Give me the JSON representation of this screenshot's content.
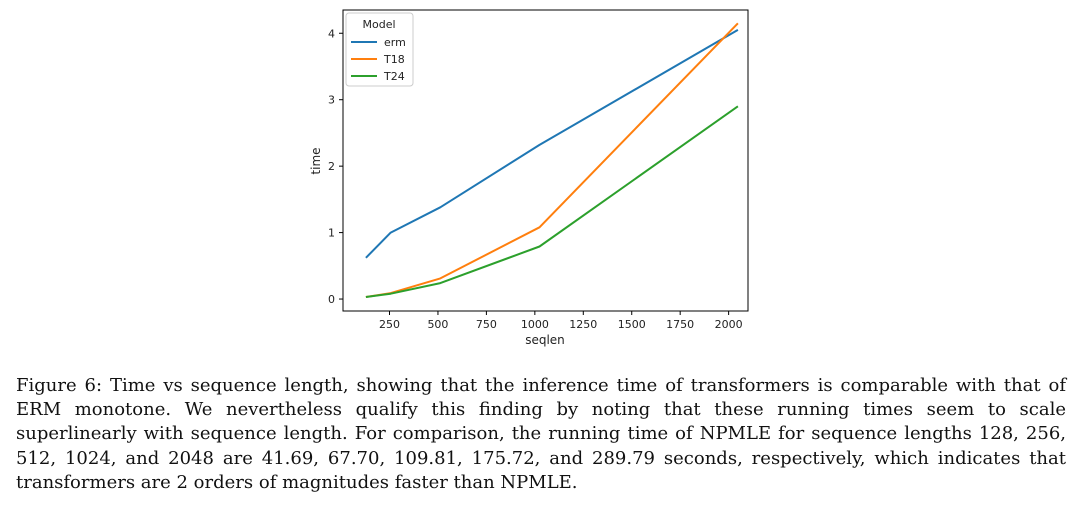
{
  "chart_data": {
    "type": "line",
    "xlabel": "seqlen",
    "ylabel": "time",
    "xlim": [
      10,
      2100
    ],
    "ylim": [
      -0.18,
      4.35
    ],
    "xticks": [
      250,
      500,
      750,
      1000,
      1250,
      1500,
      1750,
      2000
    ],
    "yticks": [
      0,
      1,
      2,
      3,
      4
    ],
    "grid": false,
    "legend": {
      "title": "Model",
      "placement": "top-left"
    },
    "x": [
      128,
      256,
      512,
      1024,
      2048
    ],
    "series": [
      {
        "name": "erm",
        "color": "#1f77b4",
        "values": [
          0.62,
          1.0,
          1.38,
          2.32,
          4.05
        ]
      },
      {
        "name": "T18",
        "color": "#ff7f0e",
        "values": [
          0.03,
          0.09,
          0.31,
          1.08,
          4.15
        ]
      },
      {
        "name": "T24",
        "color": "#2ca02c",
        "values": [
          0.03,
          0.08,
          0.24,
          0.79,
          2.9
        ]
      }
    ]
  },
  "caption": {
    "text": "Figure 6: Time vs sequence length, showing that the inference time of transformers is comparable with that of ERM monotone. We nevertheless qualify this finding by noting that these running times seem to scale superlinearly with sequence length. For comparison, the running time of NPMLE for sequence lengths 128, 256, 512, 1024, and 2048 are 41.69, 67.70, 109.81, 175.72, and 289.79 seconds, respectively, which indicates that transformers are 2 orders of magnitudes faster than NPMLE."
  }
}
